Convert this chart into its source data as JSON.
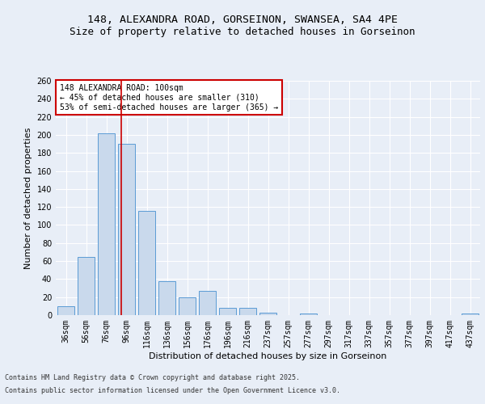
{
  "title_line1": "148, ALEXANDRA ROAD, GORSEINON, SWANSEA, SA4 4PE",
  "title_line2": "Size of property relative to detached houses in Gorseinon",
  "xlabel": "Distribution of detached houses by size in Gorseinon",
  "ylabel": "Number of detached properties",
  "categories": [
    "36sqm",
    "56sqm",
    "76sqm",
    "96sqm",
    "116sqm",
    "136sqm",
    "156sqm",
    "176sqm",
    "196sqm",
    "216sqm",
    "237sqm",
    "257sqm",
    "277sqm",
    "297sqm",
    "317sqm",
    "337sqm",
    "357sqm",
    "377sqm",
    "397sqm",
    "417sqm",
    "437sqm"
  ],
  "values": [
    10,
    65,
    202,
    190,
    116,
    38,
    20,
    27,
    8,
    8,
    3,
    0,
    2,
    0,
    0,
    0,
    0,
    0,
    0,
    0,
    2
  ],
  "bar_color": "#c9d9ec",
  "bar_edge_color": "#5b9bd5",
  "vline_color": "#cc0000",
  "annotation_text": "148 ALEXANDRA ROAD: 100sqm\n← 45% of detached houses are smaller (310)\n53% of semi-detached houses are larger (365) →",
  "annotation_box_color": "#ffffff",
  "annotation_box_edge_color": "#cc0000",
  "ylim": [
    0,
    260
  ],
  "yticks": [
    0,
    20,
    40,
    60,
    80,
    100,
    120,
    140,
    160,
    180,
    200,
    220,
    240,
    260
  ],
  "footer_line1": "Contains HM Land Registry data © Crown copyright and database right 2025.",
  "footer_line2": "Contains public sector information licensed under the Open Government Licence v3.0.",
  "bg_color": "#e8eef7",
  "plot_bg_color": "#e8eef7",
  "grid_color": "#ffffff",
  "title_fontsize": 9.5,
  "subtitle_fontsize": 9,
  "axis_label_fontsize": 8,
  "tick_fontsize": 7,
  "annotation_fontsize": 7,
  "footer_fontsize": 6
}
